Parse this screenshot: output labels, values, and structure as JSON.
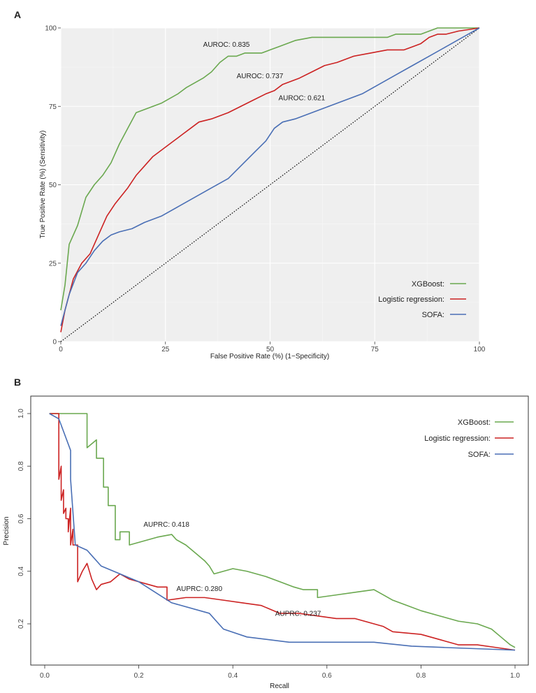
{
  "chart_data": [
    {
      "type": "line",
      "panel": "A",
      "xlabel": "False Positive Rate (%)     (1−Specificity)",
      "ylabel": "True Positive Rate (%)     (Sensitivity)",
      "xlim": [
        0,
        100
      ],
      "ylim": [
        0,
        100
      ],
      "x_ticks": [
        0,
        25,
        50,
        75,
        100
      ],
      "y_ticks": [
        0,
        25,
        50,
        75,
        100
      ],
      "grid": true,
      "legend_position": "bottom-right",
      "diagonal_reference": true,
      "series": [
        {
          "name": "XGBoost:",
          "color": "#6aa84f",
          "x": [
            0,
            1,
            2,
            4,
            6,
            8,
            10,
            12,
            14,
            16,
            18,
            20,
            24,
            28,
            30,
            34,
            36,
            38,
            40,
            42,
            44,
            48,
            50,
            52,
            54,
            56,
            60,
            66,
            72,
            78,
            80,
            84,
            86,
            88,
            90,
            95,
            100
          ],
          "y": [
            10,
            18,
            31,
            37,
            46,
            50,
            53,
            57,
            63,
            68,
            73,
            74,
            76,
            79,
            81,
            84,
            86,
            89,
            91,
            91,
            92,
            92,
            93,
            94,
            95,
            96,
            97,
            97,
            97,
            97,
            98,
            98,
            98,
            99,
            100,
            100,
            100
          ]
        },
        {
          "name": "Logistic regression:",
          "color": "#cc2222",
          "x": [
            0,
            1,
            3,
            5,
            7,
            9,
            11,
            13,
            16,
            18,
            20,
            22,
            24,
            27,
            29,
            31,
            33,
            36,
            40,
            43,
            46,
            49,
            51,
            53,
            55,
            57,
            60,
            63,
            66,
            68,
            70,
            74,
            78,
            80,
            82,
            84,
            86,
            88,
            90,
            92,
            95,
            100
          ],
          "y": [
            3,
            10,
            20,
            25,
            28,
            34,
            40,
            44,
            49,
            53,
            56,
            59,
            61,
            64,
            66,
            68,
            70,
            71,
            73,
            75,
            77,
            79,
            80,
            82,
            83,
            84,
            86,
            88,
            89,
            90,
            91,
            92,
            93,
            93,
            93,
            94,
            95,
            97,
            98,
            98,
            99,
            100
          ]
        },
        {
          "name": "SOFA:",
          "color": "#4a6fb5",
          "x": [
            0,
            2,
            4,
            6,
            8,
            10,
            12,
            14,
            17,
            20,
            24,
            28,
            32,
            36,
            40,
            43,
            46,
            49,
            51,
            53,
            56,
            60,
            64,
            68,
            72,
            76,
            80,
            84,
            88,
            92,
            96,
            100
          ],
          "y": [
            5,
            15,
            22,
            25,
            29,
            32,
            34,
            35,
            36,
            38,
            40,
            43,
            46,
            49,
            52,
            56,
            60,
            64,
            68,
            70,
            71,
            73,
            75,
            77,
            79,
            82,
            85,
            88,
            91,
            94,
            97,
            100
          ]
        }
      ],
      "annotations": [
        {
          "text": "AUROC: 0.835",
          "x": 34,
          "y": 94
        },
        {
          "text": "AUROC: 0.737",
          "x": 42,
          "y": 84
        },
        {
          "text": "AUROC: 0.621",
          "x": 52,
          "y": 77
        }
      ]
    },
    {
      "type": "line",
      "panel": "B",
      "xlabel": "Recall",
      "ylabel": "Precision",
      "xlim": [
        0,
        1
      ],
      "ylim": [
        0.08,
        1.03
      ],
      "x_ticks": [
        "0.0",
        "0.2",
        "0.4",
        "0.6",
        "0.8",
        "1.0"
      ],
      "y_ticks": [
        "0.2",
        "0.4",
        "0.6",
        "0.8",
        "1.0"
      ],
      "grid": false,
      "legend_position": "top-right",
      "series": [
        {
          "name": "XGBoost:",
          "color": "#6aa84f",
          "x": [
            0.01,
            0.09,
            0.09,
            0.11,
            0.11,
            0.125,
            0.125,
            0.135,
            0.135,
            0.15,
            0.15,
            0.16,
            0.16,
            0.18,
            0.18,
            0.24,
            0.27,
            0.28,
            0.3,
            0.32,
            0.34,
            0.35,
            0.36,
            0.4,
            0.43,
            0.47,
            0.5,
            0.53,
            0.55,
            0.58,
            0.58,
            0.62,
            0.66,
            0.7,
            0.72,
            0.74,
            0.77,
            0.8,
            0.84,
            0.88,
            0.92,
            0.95,
            0.97,
            0.99,
            1.0
          ],
          "y": [
            1.0,
            1.0,
            0.87,
            0.9,
            0.83,
            0.83,
            0.72,
            0.72,
            0.65,
            0.65,
            0.52,
            0.52,
            0.55,
            0.55,
            0.5,
            0.53,
            0.54,
            0.52,
            0.5,
            0.47,
            0.44,
            0.42,
            0.39,
            0.41,
            0.4,
            0.38,
            0.36,
            0.34,
            0.33,
            0.33,
            0.3,
            0.31,
            0.32,
            0.33,
            0.31,
            0.29,
            0.27,
            0.25,
            0.23,
            0.21,
            0.2,
            0.18,
            0.15,
            0.12,
            0.11
          ]
        },
        {
          "name": "Logistic regression:",
          "color": "#cc2222",
          "x": [
            0.01,
            0.03,
            0.03,
            0.035,
            0.035,
            0.04,
            0.04,
            0.045,
            0.045,
            0.05,
            0.05,
            0.055,
            0.055,
            0.06,
            0.06,
            0.07,
            0.07,
            0.08,
            0.09,
            0.1,
            0.11,
            0.12,
            0.14,
            0.16,
            0.18,
            0.22,
            0.24,
            0.26,
            0.26,
            0.3,
            0.34,
            0.38,
            0.42,
            0.46,
            0.5,
            0.54,
            0.58,
            0.62,
            0.66,
            0.7,
            0.72,
            0.74,
            0.8,
            0.84,
            0.88,
            0.92,
            0.96,
            1.0
          ],
          "y": [
            1.0,
            1.0,
            0.75,
            0.8,
            0.67,
            0.71,
            0.62,
            0.64,
            0.6,
            0.6,
            0.55,
            0.64,
            0.5,
            0.56,
            0.5,
            0.5,
            0.36,
            0.4,
            0.43,
            0.37,
            0.33,
            0.35,
            0.36,
            0.39,
            0.37,
            0.35,
            0.34,
            0.34,
            0.29,
            0.3,
            0.3,
            0.29,
            0.28,
            0.27,
            0.24,
            0.24,
            0.23,
            0.22,
            0.22,
            0.2,
            0.19,
            0.17,
            0.16,
            0.14,
            0.12,
            0.12,
            0.11,
            0.1
          ]
        },
        {
          "name": "SOFA:",
          "color": "#4a6fb5",
          "x": [
            0.01,
            0.03,
            0.055,
            0.055,
            0.065,
            0.09,
            0.12,
            0.2,
            0.27,
            0.35,
            0.38,
            0.43,
            0.52,
            0.6,
            0.7,
            0.78,
            0.85,
            1.0
          ],
          "y": [
            1.0,
            0.98,
            0.86,
            0.75,
            0.5,
            0.48,
            0.42,
            0.36,
            0.28,
            0.24,
            0.18,
            0.15,
            0.13,
            0.13,
            0.13,
            0.115,
            0.11,
            0.1
          ]
        }
      ],
      "annotations": [
        {
          "text": "AUPRC: 0.418",
          "x": 0.21,
          "y": 0.57
        },
        {
          "text": "AUPRC: 0.280",
          "x": 0.28,
          "y": 0.325
        },
        {
          "text": "AUPRC: 0.237",
          "x": 0.49,
          "y": 0.23
        }
      ]
    }
  ]
}
